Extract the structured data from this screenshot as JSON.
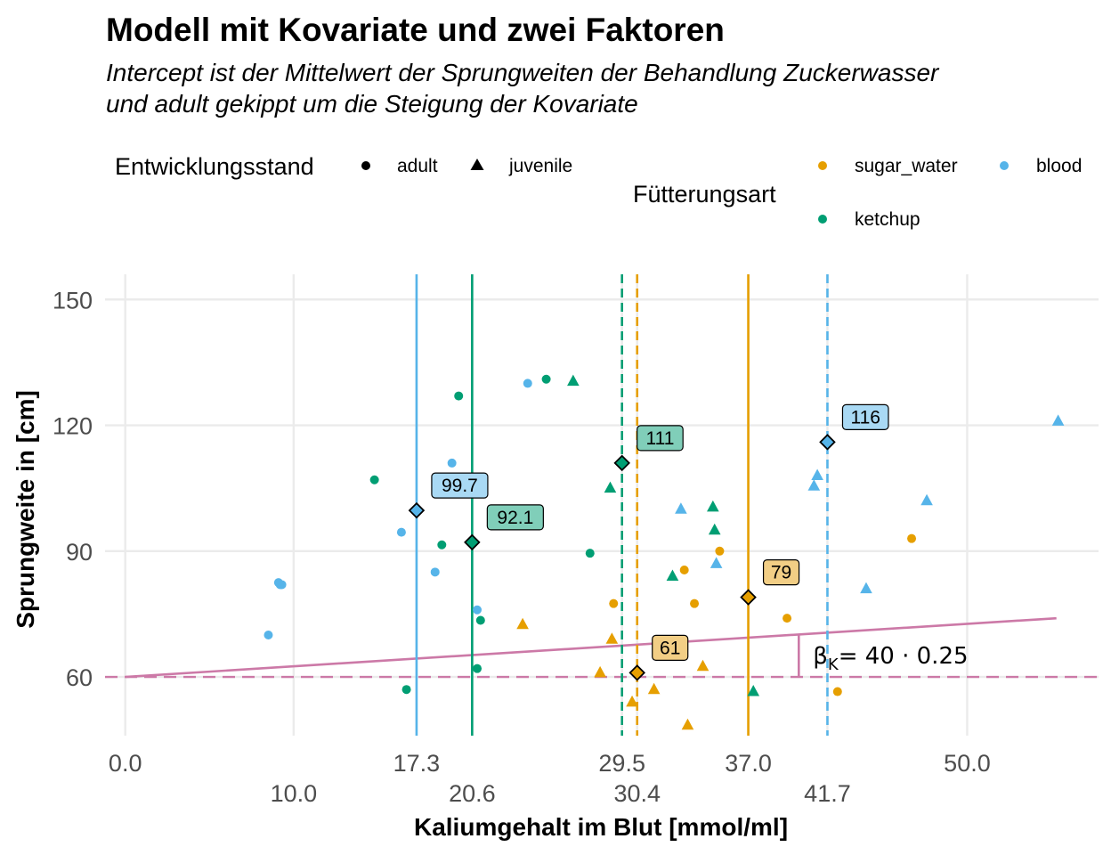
{
  "chart_data": {
    "type": "scatter",
    "title": "Modell mit Kovariate und zwei Faktoren",
    "subtitle": [
      "Intercept ist der Mittelwert der Sprungweiten der Behandlung Zuckerwasser",
      "und adult gekippt um die Steigung der Kovariate"
    ],
    "xlabel": "Kaliumgehalt im Blut [mmol/ml]",
    "ylabel": "Sprungweite in [cm]",
    "xlim": [
      -1.2,
      57.8
    ],
    "ylim": [
      46,
      156
    ],
    "grid": true,
    "x_ticks_row1": [
      0.0,
      17.3,
      29.5,
      37.0,
      50.0
    ],
    "x_ticks_row1_labels": [
      "0.0",
      "17.3",
      "29.5",
      "37.0",
      "50.0"
    ],
    "x_ticks_row2": [
      10.0,
      20.6,
      30.4,
      41.7
    ],
    "x_ticks_row2_labels": [
      "10.0",
      "20.6",
      "30.4",
      "41.7"
    ],
    "y_ticks": [
      60,
      90,
      120,
      150
    ],
    "y_tick_labels": [
      "60",
      "90",
      "120",
      "150"
    ],
    "legend": {
      "shape_title": "Entwicklungsstand",
      "shape_items": [
        {
          "label": "adult",
          "shape": "circle"
        },
        {
          "label": "juvenile",
          "shape": "triangle"
        }
      ],
      "color_title": "Fütterungsart",
      "color_items": [
        {
          "label": "sugar_water",
          "color": "#E69F00"
        },
        {
          "label": "blood",
          "color": "#56B4E9"
        },
        {
          "label": "ketchup",
          "color": "#009E73"
        }
      ],
      "placement": "top"
    },
    "colors": {
      "sugar_water": "#E69F00",
      "blood": "#56B4E9",
      "ketchup": "#009E73",
      "model": "#CC79A7",
      "sugar_water_label_fill": "#F2CE85",
      "blood_label_fill": "#A9D9F4",
      "ketchup_label_fill": "#80CEB9"
    },
    "points": [
      {
        "x": 9.2,
        "y": 82,
        "group": "blood",
        "stage": "adult"
      },
      {
        "x": 9.1,
        "y": 82.5,
        "group": "blood",
        "stage": "adult"
      },
      {
        "x": 9.3,
        "y": 82,
        "group": "blood",
        "stage": "adult"
      },
      {
        "x": 8.5,
        "y": 70,
        "group": "blood",
        "stage": "adult"
      },
      {
        "x": 16.4,
        "y": 94.5,
        "group": "blood",
        "stage": "adult"
      },
      {
        "x": 18.4,
        "y": 85,
        "group": "blood",
        "stage": "adult"
      },
      {
        "x": 19.4,
        "y": 111,
        "group": "blood",
        "stage": "adult"
      },
      {
        "x": 20.9,
        "y": 76,
        "group": "blood",
        "stage": "adult"
      },
      {
        "x": 23.9,
        "y": 130,
        "group": "blood",
        "stage": "adult"
      },
      {
        "x": 33.0,
        "y": 100,
        "group": "blood",
        "stage": "juvenile"
      },
      {
        "x": 35.1,
        "y": 87,
        "group": "blood",
        "stage": "juvenile"
      },
      {
        "x": 40.9,
        "y": 105.5,
        "group": "blood",
        "stage": "juvenile"
      },
      {
        "x": 41.1,
        "y": 108,
        "group": "blood",
        "stage": "juvenile"
      },
      {
        "x": 44.0,
        "y": 81,
        "group": "blood",
        "stage": "juvenile"
      },
      {
        "x": 47.6,
        "y": 102,
        "group": "blood",
        "stage": "juvenile"
      },
      {
        "x": 55.4,
        "y": 121,
        "group": "blood",
        "stage": "juvenile"
      },
      {
        "x": 14.8,
        "y": 107,
        "group": "ketchup",
        "stage": "adult"
      },
      {
        "x": 16.7,
        "y": 57,
        "group": "ketchup",
        "stage": "adult"
      },
      {
        "x": 18.8,
        "y": 91.5,
        "group": "ketchup",
        "stage": "adult"
      },
      {
        "x": 19.8,
        "y": 127,
        "group": "ketchup",
        "stage": "adult"
      },
      {
        "x": 20.9,
        "y": 62,
        "group": "ketchup",
        "stage": "adult"
      },
      {
        "x": 21.1,
        "y": 73.5,
        "group": "ketchup",
        "stage": "adult"
      },
      {
        "x": 25.0,
        "y": 131,
        "group": "ketchup",
        "stage": "adult"
      },
      {
        "x": 27.6,
        "y": 89.5,
        "group": "ketchup",
        "stage": "adult"
      },
      {
        "x": 26.6,
        "y": 130.5,
        "group": "ketchup",
        "stage": "juvenile"
      },
      {
        "x": 28.8,
        "y": 105,
        "group": "ketchup",
        "stage": "juvenile"
      },
      {
        "x": 32.5,
        "y": 84,
        "group": "ketchup",
        "stage": "juvenile"
      },
      {
        "x": 34.9,
        "y": 100.5,
        "group": "ketchup",
        "stage": "juvenile"
      },
      {
        "x": 35.0,
        "y": 95,
        "group": "ketchup",
        "stage": "juvenile"
      },
      {
        "x": 37.3,
        "y": 56.5,
        "group": "ketchup",
        "stage": "juvenile"
      },
      {
        "x": 29.0,
        "y": 77.5,
        "group": "sugar_water",
        "stage": "adult"
      },
      {
        "x": 33.2,
        "y": 85.5,
        "group": "sugar_water",
        "stage": "adult"
      },
      {
        "x": 33.8,
        "y": 77.5,
        "group": "sugar_water",
        "stage": "adult"
      },
      {
        "x": 35.3,
        "y": 90,
        "group": "sugar_water",
        "stage": "adult"
      },
      {
        "x": 39.3,
        "y": 74,
        "group": "sugar_water",
        "stage": "adult"
      },
      {
        "x": 42.3,
        "y": 56.5,
        "group": "sugar_water",
        "stage": "adult"
      },
      {
        "x": 46.7,
        "y": 93,
        "group": "sugar_water",
        "stage": "adult"
      },
      {
        "x": 23.6,
        "y": 72.5,
        "group": "sugar_water",
        "stage": "juvenile"
      },
      {
        "x": 28.2,
        "y": 61,
        "group": "sugar_water",
        "stage": "juvenile"
      },
      {
        "x": 28.9,
        "y": 69,
        "group": "sugar_water",
        "stage": "juvenile"
      },
      {
        "x": 30.1,
        "y": 54,
        "group": "sugar_water",
        "stage": "juvenile"
      },
      {
        "x": 31.4,
        "y": 57,
        "group": "sugar_water",
        "stage": "juvenile"
      },
      {
        "x": 31.7,
        "y": 68,
        "group": "sugar_water",
        "stage": "juvenile"
      },
      {
        "x": 33.4,
        "y": 48.5,
        "group": "sugar_water",
        "stage": "juvenile"
      },
      {
        "x": 34.3,
        "y": 62.5,
        "group": "sugar_water",
        "stage": "juvenile"
      }
    ],
    "vlines": [
      {
        "x": 17.3,
        "group": "blood",
        "style": "solid"
      },
      {
        "x": 20.6,
        "group": "ketchup",
        "style": "solid"
      },
      {
        "x": 29.5,
        "group": "ketchup",
        "style": "dashed"
      },
      {
        "x": 30.4,
        "group": "sugar_water",
        "style": "dashed"
      },
      {
        "x": 37.0,
        "group": "sugar_water",
        "style": "solid"
      },
      {
        "x": 41.7,
        "group": "blood",
        "style": "dashed"
      }
    ],
    "means": [
      {
        "x": 17.3,
        "y": 99.7,
        "label": "99.7",
        "group": "blood"
      },
      {
        "x": 20.6,
        "y": 92.1,
        "label": "92.1",
        "group": "ketchup"
      },
      {
        "x": 29.5,
        "y": 111,
        "label": "111",
        "group": "ketchup"
      },
      {
        "x": 30.4,
        "y": 61,
        "label": "61",
        "group": "sugar_water"
      },
      {
        "x": 37.0,
        "y": 79,
        "label": "79",
        "group": "sugar_water"
      },
      {
        "x": 41.7,
        "y": 116,
        "label": "116",
        "group": "blood"
      }
    ],
    "intercept_line": {
      "y": 60
    },
    "model_line": {
      "x": [
        0,
        55.3
      ],
      "y": [
        60,
        74
      ]
    },
    "slope_annotation": {
      "x": 40.0,
      "label": "βK= 40 · 0.25"
    }
  }
}
